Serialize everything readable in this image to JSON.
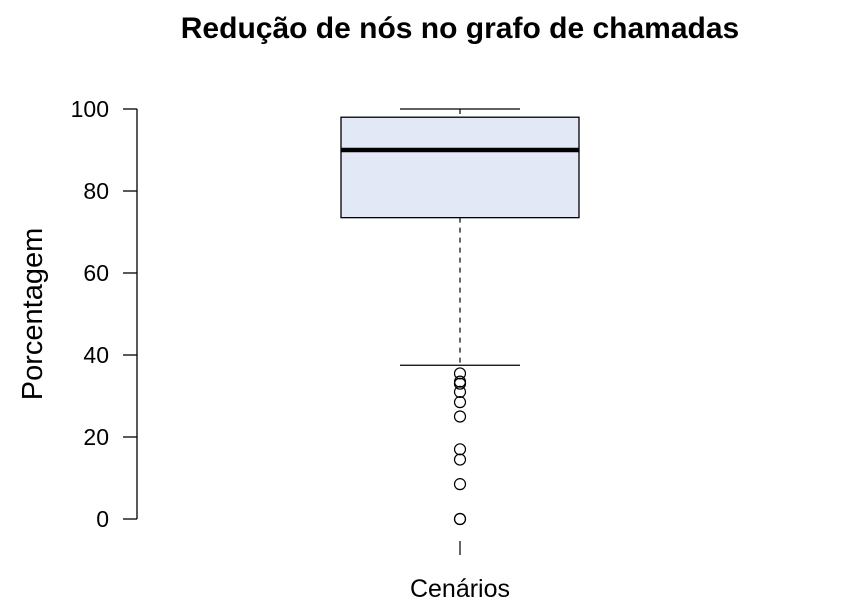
{
  "chart_data": {
    "type": "box",
    "title": "Redução de nós no grafo de chamadas",
    "xlabel": "",
    "ylabel": "Porcentagem",
    "categories": [
      "Cenários"
    ],
    "ylim": [
      0,
      100
    ],
    "yticks": [
      0,
      20,
      40,
      60,
      80,
      100
    ],
    "grid": false,
    "box": {
      "whisker_low": 37.5,
      "q1": 73.5,
      "median": 90,
      "q3": 98,
      "whisker_high": 100,
      "outliers": [
        35.5,
        33.5,
        33,
        31,
        28.5,
        25,
        17,
        14.5,
        8.5,
        0,
        0
      ],
      "fill_color": "#e3e8f6",
      "line_color": "#000000"
    }
  }
}
